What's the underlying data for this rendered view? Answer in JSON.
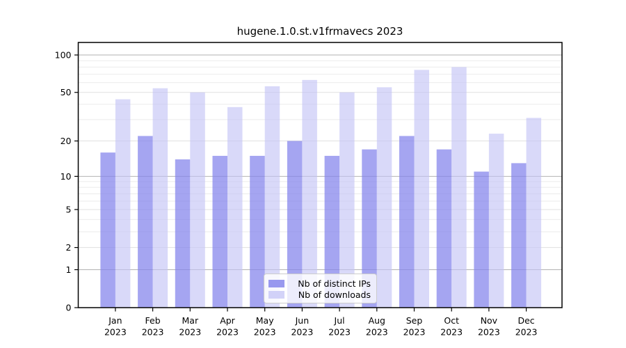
{
  "title": "hugene.1.0.st.v1frmavecs 2023",
  "chart_data": {
    "type": "bar",
    "title": "hugene.1.0.st.v1frmavecs 2023",
    "categories": [
      "Jan 2023",
      "Feb 2023",
      "Mar 2023",
      "Apr 2023",
      "May 2023",
      "Jun 2023",
      "Jul 2023",
      "Aug 2023",
      "Sep 2023",
      "Oct 2023",
      "Nov 2023",
      "Dec 2023"
    ],
    "series": [
      {
        "name": "Nb of distinct IPs",
        "color": "#8282eb",
        "fill_opacity": 0.72,
        "values": [
          16,
          22,
          14,
          15,
          15,
          20,
          15,
          17,
          22,
          17,
          11,
          13
        ]
      },
      {
        "name": "Nb of downloads",
        "color": "#c4c4f6",
        "fill_opacity": 0.64,
        "values": [
          44,
          54,
          50,
          38,
          56,
          63,
          50,
          55,
          76,
          80,
          23,
          31
        ]
      }
    ],
    "yscale": "log1p",
    "ylim": [
      0,
      115
    ],
    "yticks": [
      100,
      50,
      20,
      10,
      5,
      2,
      1,
      0
    ],
    "minor_gridlines": [
      3,
      4,
      6,
      7,
      8,
      9,
      30,
      40,
      60,
      70,
      80,
      90
    ],
    "mid_gridlines": [
      2,
      5,
      20,
      50
    ],
    "major_gridlines": [
      1,
      10,
      100
    ],
    "grid": true,
    "legend_position": "bottom-center",
    "xlabel": "",
    "ylabel": ""
  },
  "legend": {
    "items": [
      {
        "label": "Nb of distinct IPs"
      },
      {
        "label": "Nb of downloads"
      }
    ]
  },
  "colors": {
    "bar_dark": "#8282eb",
    "bar_light": "#c4c4f6",
    "grid_major": "#b2b2b2",
    "grid_mid": "#e0e0e0",
    "grid_minor": "#ebebeb",
    "axis_border": "#000000"
  }
}
